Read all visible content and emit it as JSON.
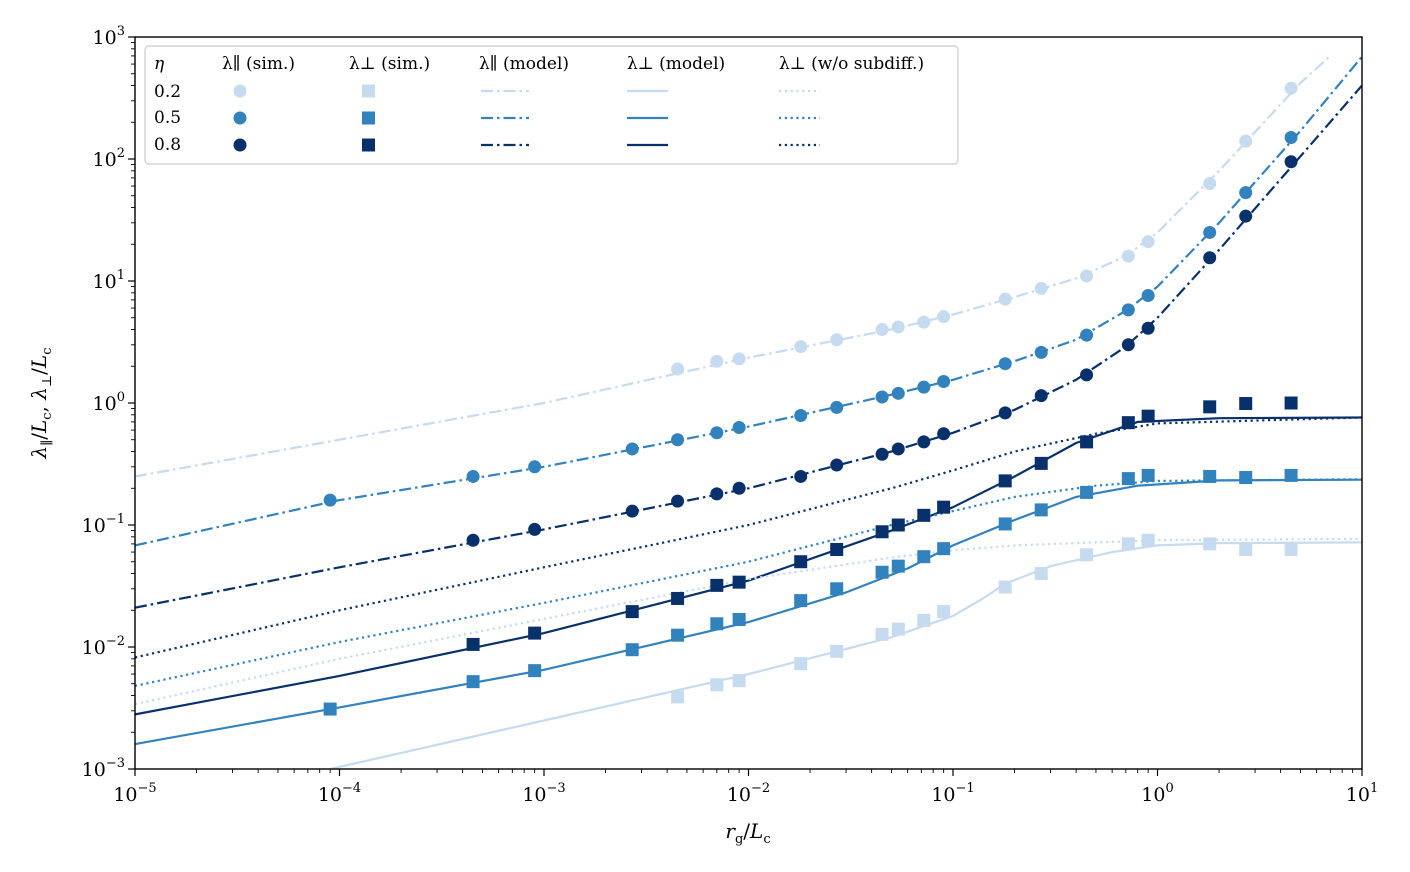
{
  "chart_data": {
    "type": "scatter",
    "title": "",
    "xlabel": "r_g/L_c",
    "ylabel": "λ∥/L_c, λ⊥/L_c",
    "xscale": "log",
    "yscale": "log",
    "xlim": [
      1e-05,
      10
    ],
    "ylim": [
      0.001,
      1000
    ],
    "grid": false,
    "legend_position": "top-left",
    "x_ticks": [
      {
        "value": 1e-05,
        "base": "10",
        "exp": "−5"
      },
      {
        "value": 0.0001,
        "base": "10",
        "exp": "−4"
      },
      {
        "value": 0.001,
        "base": "10",
        "exp": "−3"
      },
      {
        "value": 0.01,
        "base": "10",
        "exp": "−2"
      },
      {
        "value": 0.1,
        "base": "10",
        "exp": "−1"
      },
      {
        "value": 1,
        "base": "10",
        "exp": "0"
      },
      {
        "value": 10,
        "base": "10",
        "exp": "1"
      }
    ],
    "y_ticks": [
      {
        "value": 0.001,
        "base": "10",
        "exp": "−3"
      },
      {
        "value": 0.01,
        "base": "10",
        "exp": "−2"
      },
      {
        "value": 0.1,
        "base": "10",
        "exp": "−1"
      },
      {
        "value": 1,
        "base": "10",
        "exp": "0"
      },
      {
        "value": 10,
        "base": "10",
        "exp": "1"
      },
      {
        "value": 100,
        "base": "10",
        "exp": "2"
      },
      {
        "value": 1000,
        "base": "10",
        "exp": "3"
      }
    ],
    "legend": {
      "eta_header": "η",
      "columns": [
        "λ∥ (sim.)",
        "λ⊥ (sim.)",
        "λ∥ (model)",
        "λ⊥ (model)",
        "λ⊥ (w/o subdiff.)"
      ],
      "rows": [
        "0.2",
        "0.5",
        "0.8"
      ]
    },
    "colors": {
      "0.2": "#c6dbef",
      "0.5": "#3182bd",
      "0.8": "#08306b"
    },
    "series": [
      {
        "name": "λ∥ (sim.) η=0.2",
        "eta": "0.2",
        "kind": "sim_par",
        "marker": "circle",
        "points": [
          [
            0.0045,
            1.9
          ],
          [
            0.007,
            2.2
          ],
          [
            0.009,
            2.3
          ],
          [
            0.018,
            2.9
          ],
          [
            0.027,
            3.3
          ],
          [
            0.045,
            4.0
          ],
          [
            0.054,
            4.2
          ],
          [
            0.072,
            4.6
          ],
          [
            0.09,
            5.1
          ],
          [
            0.18,
            7.1
          ],
          [
            0.27,
            8.7
          ],
          [
            0.45,
            11
          ],
          [
            0.72,
            16
          ],
          [
            0.9,
            21
          ],
          [
            1.8,
            63
          ],
          [
            2.7,
            140
          ],
          [
            4.5,
            380
          ]
        ]
      },
      {
        "name": "λ∥ (sim.) η=0.5",
        "eta": "0.5",
        "kind": "sim_par",
        "marker": "circle",
        "points": [
          [
            9e-05,
            0.16
          ],
          [
            0.00045,
            0.25
          ],
          [
            0.0009,
            0.3
          ],
          [
            0.0027,
            0.42
          ],
          [
            0.0045,
            0.5
          ],
          [
            0.007,
            0.57
          ],
          [
            0.009,
            0.63
          ],
          [
            0.018,
            0.79
          ],
          [
            0.027,
            0.92
          ],
          [
            0.045,
            1.12
          ],
          [
            0.054,
            1.2
          ],
          [
            0.072,
            1.35
          ],
          [
            0.09,
            1.5
          ],
          [
            0.18,
            2.1
          ],
          [
            0.27,
            2.6
          ],
          [
            0.45,
            3.6
          ],
          [
            0.72,
            5.8
          ],
          [
            0.9,
            7.6
          ],
          [
            1.8,
            25
          ],
          [
            2.7,
            53
          ],
          [
            4.5,
            150
          ]
        ]
      },
      {
        "name": "λ∥ (sim.) η=0.8",
        "eta": "0.8",
        "kind": "sim_par",
        "marker": "circle",
        "points": [
          [
            0.00045,
            0.075
          ],
          [
            0.0009,
            0.092
          ],
          [
            0.0027,
            0.13
          ],
          [
            0.0045,
            0.157
          ],
          [
            0.007,
            0.18
          ],
          [
            0.009,
            0.2
          ],
          [
            0.018,
            0.25
          ],
          [
            0.027,
            0.31
          ],
          [
            0.045,
            0.38
          ],
          [
            0.054,
            0.42
          ],
          [
            0.072,
            0.48
          ],
          [
            0.09,
            0.56
          ],
          [
            0.18,
            0.83
          ],
          [
            0.27,
            1.15
          ],
          [
            0.45,
            1.7
          ],
          [
            0.72,
            3.0
          ],
          [
            0.9,
            4.1
          ],
          [
            1.8,
            15.5
          ],
          [
            2.7,
            34
          ],
          [
            4.5,
            95
          ]
        ]
      },
      {
        "name": "λ⊥ (sim.) η=0.2",
        "eta": "0.2",
        "kind": "sim_perp",
        "marker": "square",
        "points": [
          [
            0.0045,
            0.0039
          ],
          [
            0.007,
            0.0049
          ],
          [
            0.009,
            0.0053
          ],
          [
            0.018,
            0.0073
          ],
          [
            0.027,
            0.0092
          ],
          [
            0.045,
            0.0127
          ],
          [
            0.054,
            0.014
          ],
          [
            0.072,
            0.0165
          ],
          [
            0.09,
            0.0195
          ],
          [
            0.18,
            0.031
          ],
          [
            0.27,
            0.04
          ],
          [
            0.45,
            0.057
          ],
          [
            0.72,
            0.07
          ],
          [
            0.9,
            0.075
          ],
          [
            1.8,
            0.07
          ],
          [
            2.7,
            0.063
          ],
          [
            4.5,
            0.063
          ]
        ]
      },
      {
        "name": "λ⊥ (sim.) η=0.5",
        "eta": "0.5",
        "kind": "sim_perp",
        "marker": "square",
        "points": [
          [
            9e-05,
            0.0031
          ],
          [
            0.00045,
            0.0052
          ],
          [
            0.0009,
            0.0064
          ],
          [
            0.0027,
            0.0095
          ],
          [
            0.0045,
            0.0125
          ],
          [
            0.007,
            0.0155
          ],
          [
            0.009,
            0.0168
          ],
          [
            0.018,
            0.024
          ],
          [
            0.027,
            0.03
          ],
          [
            0.045,
            0.041
          ],
          [
            0.054,
            0.046
          ],
          [
            0.072,
            0.055
          ],
          [
            0.09,
            0.064
          ],
          [
            0.18,
            0.102
          ],
          [
            0.27,
            0.133
          ],
          [
            0.45,
            0.185
          ],
          [
            0.72,
            0.24
          ],
          [
            0.9,
            0.255
          ],
          [
            1.8,
            0.25
          ],
          [
            2.7,
            0.245
          ],
          [
            4.5,
            0.255
          ]
        ]
      },
      {
        "name": "λ⊥ (sim.) η=0.8",
        "eta": "0.8",
        "kind": "sim_perp",
        "marker": "square",
        "points": [
          [
            0.00045,
            0.0105
          ],
          [
            0.0009,
            0.013
          ],
          [
            0.0027,
            0.0195
          ],
          [
            0.0045,
            0.025
          ],
          [
            0.007,
            0.032
          ],
          [
            0.009,
            0.034
          ],
          [
            0.018,
            0.05
          ],
          [
            0.027,
            0.063
          ],
          [
            0.045,
            0.088
          ],
          [
            0.054,
            0.1
          ],
          [
            0.072,
            0.12
          ],
          [
            0.09,
            0.14
          ],
          [
            0.18,
            0.23
          ],
          [
            0.27,
            0.32
          ],
          [
            0.45,
            0.48
          ],
          [
            0.72,
            0.69
          ],
          [
            0.9,
            0.78
          ],
          [
            1.8,
            0.93
          ],
          [
            2.7,
            0.99
          ],
          [
            4.5,
            1.0
          ]
        ]
      },
      {
        "name": "λ∥ (model) η=0.2",
        "eta": "0.2",
        "kind": "model_par",
        "style": "dashdot",
        "points": [
          [
            1e-05,
            0.25
          ],
          [
            0.0001,
            0.5
          ],
          [
            0.001,
            1.0
          ],
          [
            0.01,
            2.35
          ],
          [
            0.05,
            4.0
          ],
          [
            0.1,
            5.3
          ],
          [
            0.2,
            7.4
          ],
          [
            0.4,
            10.5
          ],
          [
            0.7,
            16
          ],
          [
            1,
            25
          ],
          [
            2,
            80
          ],
          [
            5,
            420
          ],
          [
            7,
            700
          ]
        ]
      },
      {
        "name": "λ∥ (model) η=0.5",
        "eta": "0.5",
        "kind": "model_par",
        "style": "dashdot",
        "points": [
          [
            1e-05,
            0.068
          ],
          [
            0.0001,
            0.16
          ],
          [
            0.001,
            0.3
          ],
          [
            0.01,
            0.64
          ],
          [
            0.05,
            1.17
          ],
          [
            0.1,
            1.55
          ],
          [
            0.2,
            2.2
          ],
          [
            0.4,
            3.3
          ],
          [
            0.7,
            5.7
          ],
          [
            1,
            9
          ],
          [
            2,
            30
          ],
          [
            5,
            170
          ],
          [
            10,
            690
          ]
        ]
      },
      {
        "name": "λ∥ (model) η=0.8",
        "eta": "0.8",
        "kind": "model_par",
        "style": "dashdot",
        "points": [
          [
            1e-05,
            0.021
          ],
          [
            0.0001,
            0.045
          ],
          [
            0.001,
            0.092
          ],
          [
            0.01,
            0.2
          ],
          [
            0.05,
            0.4
          ],
          [
            0.1,
            0.57
          ],
          [
            0.2,
            0.88
          ],
          [
            0.4,
            1.55
          ],
          [
            0.7,
            2.9
          ],
          [
            1,
            5
          ],
          [
            2,
            18
          ],
          [
            5,
            105
          ],
          [
            10,
            400
          ]
        ]
      },
      {
        "name": "λ⊥ (model) η=0.2",
        "eta": "0.2",
        "kind": "model_perp",
        "style": "solid",
        "points": [
          [
            9e-05,
            0.001
          ],
          [
            0.001,
            0.0025
          ],
          [
            0.01,
            0.006
          ],
          [
            0.05,
            0.012
          ],
          [
            0.1,
            0.018
          ],
          [
            0.14,
            0.025
          ],
          [
            0.18,
            0.033
          ],
          [
            0.3,
            0.046
          ],
          [
            0.6,
            0.06
          ],
          [
            1,
            0.068
          ],
          [
            2,
            0.071
          ],
          [
            10,
            0.072
          ]
        ]
      },
      {
        "name": "λ⊥ (model) η=0.5",
        "eta": "0.5",
        "kind": "model_perp",
        "style": "solid",
        "points": [
          [
            1e-05,
            0.0016
          ],
          [
            0.0001,
            0.0032
          ],
          [
            0.001,
            0.0065
          ],
          [
            0.01,
            0.016
          ],
          [
            0.03,
            0.028
          ],
          [
            0.06,
            0.044
          ],
          [
            0.1,
            0.068
          ],
          [
            0.2,
            0.11
          ],
          [
            0.4,
            0.17
          ],
          [
            0.8,
            0.21
          ],
          [
            2,
            0.232
          ],
          [
            10,
            0.235
          ]
        ]
      },
      {
        "name": "λ⊥ (model) η=0.8",
        "eta": "0.8",
        "kind": "model_perp",
        "style": "solid",
        "points": [
          [
            1e-05,
            0.0028
          ],
          [
            0.0001,
            0.0058
          ],
          [
            0.001,
            0.013
          ],
          [
            0.01,
            0.035
          ],
          [
            0.05,
            0.09
          ],
          [
            0.1,
            0.14
          ],
          [
            0.2,
            0.25
          ],
          [
            0.4,
            0.47
          ],
          [
            0.8,
            0.7
          ],
          [
            2,
            0.75
          ],
          [
            10,
            0.76
          ]
        ]
      },
      {
        "name": "λ⊥ (w/o subdiff.) η=0.2",
        "eta": "0.2",
        "kind": "nosub_perp",
        "style": "dotted",
        "points": [
          [
            1e-05,
            0.0034
          ],
          [
            0.0001,
            0.008
          ],
          [
            0.001,
            0.017
          ],
          [
            0.01,
            0.036
          ],
          [
            0.05,
            0.054
          ],
          [
            0.1,
            0.062
          ],
          [
            0.2,
            0.068
          ],
          [
            0.5,
            0.072
          ],
          [
            1,
            0.075
          ],
          [
            10,
            0.077
          ]
        ]
      },
      {
        "name": "λ⊥ (w/o subdiff.) η=0.5",
        "eta": "0.5",
        "kind": "nosub_perp",
        "style": "dotted",
        "points": [
          [
            1e-05,
            0.0048
          ],
          [
            0.0001,
            0.011
          ],
          [
            0.001,
            0.023
          ],
          [
            0.01,
            0.05
          ],
          [
            0.05,
            0.1
          ],
          [
            0.1,
            0.13
          ],
          [
            0.2,
            0.17
          ],
          [
            0.5,
            0.21
          ],
          [
            1,
            0.23
          ],
          [
            10,
            0.237
          ]
        ]
      },
      {
        "name": "λ⊥ (w/o subdiff.) η=0.8",
        "eta": "0.8",
        "kind": "nosub_perp",
        "style": "dotted",
        "points": [
          [
            1e-05,
            0.0082
          ],
          [
            0.0001,
            0.02
          ],
          [
            0.001,
            0.045
          ],
          [
            0.01,
            0.1
          ],
          [
            0.05,
            0.2
          ],
          [
            0.1,
            0.28
          ],
          [
            0.2,
            0.4
          ],
          [
            0.5,
            0.56
          ],
          [
            1,
            0.68
          ],
          [
            10,
            0.76
          ]
        ]
      }
    ]
  }
}
